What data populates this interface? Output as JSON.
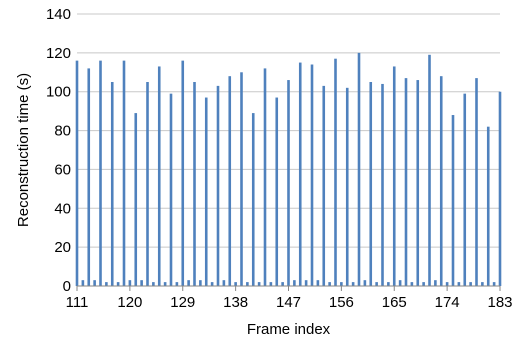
{
  "chart_data": {
    "type": "bar",
    "title": "",
    "xlabel": "Frame index",
    "ylabel": "Reconstruction time (s)",
    "ylim": [
      0,
      140
    ],
    "yticks": [
      0,
      20,
      40,
      60,
      80,
      100,
      120,
      140
    ],
    "xlim": [
      111,
      183
    ],
    "xticks": [
      111,
      120,
      129,
      138,
      147,
      156,
      165,
      174,
      183
    ],
    "grid": "horizontal",
    "bar_color": "#4f81bd",
    "x": [
      111,
      112,
      113,
      114,
      115,
      116,
      117,
      118,
      119,
      120,
      121,
      122,
      123,
      124,
      125,
      126,
      127,
      128,
      129,
      130,
      131,
      132,
      133,
      134,
      135,
      136,
      137,
      138,
      139,
      140,
      141,
      142,
      143,
      144,
      145,
      146,
      147,
      148,
      149,
      150,
      151,
      152,
      153,
      154,
      155,
      156,
      157,
      158,
      159,
      160,
      161,
      162,
      163,
      164,
      165,
      166,
      167,
      168,
      169,
      170,
      171,
      172,
      173,
      174,
      175,
      176,
      177,
      178,
      179,
      180,
      181,
      182,
      183
    ],
    "values": [
      116,
      3,
      112,
      3,
      116,
      2,
      105,
      2,
      116,
      3,
      89,
      3,
      105,
      2,
      113,
      2,
      99,
      2,
      116,
      3,
      105,
      3,
      97,
      2,
      103,
      3,
      108,
      2,
      110,
      2,
      89,
      2,
      112,
      2,
      97,
      2,
      106,
      3,
      115,
      3,
      114,
      3,
      103,
      2,
      117,
      2,
      102,
      2,
      120,
      3,
      105,
      2,
      104,
      2,
      113,
      3,
      107,
      2,
      106,
      2,
      119,
      3,
      108,
      2,
      88,
      2,
      99,
      2,
      107,
      2,
      82,
      2,
      100
    ]
  }
}
